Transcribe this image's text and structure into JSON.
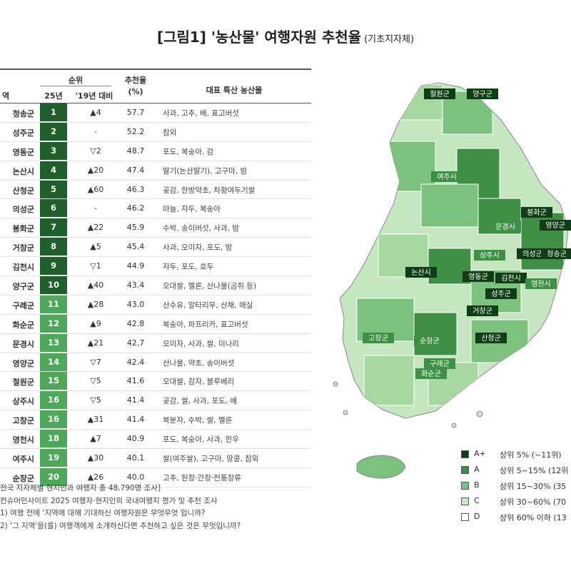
{
  "title": {
    "main": "[그림1] '농산물' 여행자원 추천율",
    "sub": "(기초지자체)"
  },
  "table": {
    "headers": {
      "region": "역",
      "rank": "순위",
      "rank_25": "25년",
      "rank_19": "'19년 대비",
      "rate": "추천율",
      "rate_unit": "(%)",
      "products": "대표 특산 농산물"
    },
    "colors": {
      "top": "#1f5f2b",
      "second": "#4da85a"
    },
    "rows": [
      {
        "region": "청송군",
        "rank": "1",
        "change": "▲4",
        "rate": "57.7",
        "products": "사과, 고추, 배, 표고버섯",
        "tier": "top"
      },
      {
        "region": "성주군",
        "rank": "2",
        "change": "-",
        "rate": "52.2",
        "products": "참외",
        "tier": "top"
      },
      {
        "region": "영동군",
        "rank": "3",
        "change": "▽2",
        "rate": "48.7",
        "products": "포도, 복숭아, 감",
        "tier": "top"
      },
      {
        "region": "논산시",
        "rank": "4",
        "change": "▲20",
        "rate": "47.4",
        "products": "딸기(논산딸기), 고구마, 밤",
        "tier": "top"
      },
      {
        "region": "산청군",
        "rank": "5",
        "change": "▲60",
        "rate": "46.3",
        "products": "곶감, 한방약초, 차황여두기쌀",
        "tier": "top"
      },
      {
        "region": "의성군",
        "rank": "6",
        "change": "-",
        "rate": "46.2",
        "products": "마늘, 자두, 복숭아",
        "tier": "top"
      },
      {
        "region": "봉화군",
        "rank": "7",
        "change": "▲22",
        "rate": "45.9",
        "products": "수박, 송이버섯, 사과, 밤",
        "tier": "top"
      },
      {
        "region": "거창군",
        "rank": "8",
        "change": "▲5",
        "rate": "45.4",
        "products": "사과, 오미자, 포도, 밤",
        "tier": "top"
      },
      {
        "region": "김천시",
        "rank": "9",
        "change": "▽1",
        "rate": "44.9",
        "products": "자두, 포도, 호두",
        "tier": "top"
      },
      {
        "region": "양구군",
        "rank": "10",
        "change": "▲40",
        "rate": "43.4",
        "products": "오대쌀, 멜론, 산나물(곰취 등)",
        "tier": "top"
      },
      {
        "region": "구례군",
        "rank": "11",
        "change": "▲28",
        "rate": "43.0",
        "products": "산수유, 알타리무, 산채, 매실",
        "tier": "second"
      },
      {
        "region": "화순군",
        "rank": "12",
        "change": "▲9",
        "rate": "42.8",
        "products": "복숭아, 파프리카, 표고버섯",
        "tier": "second"
      },
      {
        "region": "문경시",
        "rank": "13",
        "change": "▲21",
        "rate": "42.7",
        "products": "오미자, 사과, 쌀, 미나리",
        "tier": "second"
      },
      {
        "region": "영양군",
        "rank": "14",
        "change": "▽7",
        "rate": "42.4",
        "products": "산나물, 약초, 송이버섯",
        "tier": "second"
      },
      {
        "region": "철원군",
        "rank": "15",
        "change": "▽5",
        "rate": "41.6",
        "products": "오대쌀, 감자, 블루베리",
        "tier": "second"
      },
      {
        "region": "상주시",
        "rank": "16",
        "change": "▽5",
        "rate": "41.4",
        "products": "곶감, 쌀, 사과, 포도, 배",
        "tier": "second"
      },
      {
        "region": "고창군",
        "rank": "16",
        "change": "▲31",
        "rate": "41.4",
        "products": "복분자, 수박, 쌀, 멜론",
        "tier": "second"
      },
      {
        "region": "영천시",
        "rank": "18",
        "change": "▲7",
        "rate": "40.9",
        "products": "포도, 복숭아, 사과, 한우",
        "tier": "second"
      },
      {
        "region": "여주시",
        "rank": "19",
        "change": "▲30",
        "rate": "40.1",
        "products": "쌀(여주쌀), 고구마, 땅콩, 참외",
        "tier": "second"
      },
      {
        "region": "순창군",
        "rank": "20",
        "change": "▲26",
        "rate": "40.0",
        "products": "고추, 된장·간장·전통장류",
        "tier": "second"
      }
    ]
  },
  "notes": [
    "전국 지자체별 현지인과 여행자 총 48,790명 조사]",
    "컨슈머인사이트 2025 여행자·현지인의 국내여행지 평가 및 추천 조사",
    "1) 여행 전에 '지역에 대해 기대하신 여행자원은 무엇무엇 입니까?",
    "2) '그 지역'을(를) 여행객에게 소개하신다면 추천하고 싶은 것은 무엇입니까?"
  ],
  "map": {
    "colors": {
      "aplus": "#0f3d16",
      "a": "#3f8f46",
      "b": "#7dc17f",
      "c": "#c6e6c1",
      "d": "#ffffff",
      "border": "#ffffff"
    },
    "labels": [
      {
        "text": "철원군",
        "grade": "aplus"
      },
      {
        "text": "양구군",
        "grade": "aplus"
      },
      {
        "text": "여주시",
        "grade": "a"
      },
      {
        "text": "봉화군",
        "grade": "aplus"
      },
      {
        "text": "영양군",
        "grade": "aplus"
      },
      {
        "text": "문경시",
        "grade": "a"
      },
      {
        "text": "상주시",
        "grade": "a"
      },
      {
        "text": "의성군",
        "grade": "aplus"
      },
      {
        "text": "청송군",
        "grade": "aplus"
      },
      {
        "text": "논산시",
        "grade": "aplus"
      },
      {
        "text": "영동군",
        "grade": "aplus"
      },
      {
        "text": "김천시",
        "grade": "aplus"
      },
      {
        "text": "영천시",
        "grade": "a"
      },
      {
        "text": "성주군",
        "grade": "aplus"
      },
      {
        "text": "거창군",
        "grade": "aplus"
      },
      {
        "text": "고창군",
        "grade": "a"
      },
      {
        "text": "순창군",
        "grade": "a"
      },
      {
        "text": "산청군",
        "grade": "aplus"
      },
      {
        "text": "구례군",
        "grade": "a"
      },
      {
        "text": "화순군",
        "grade": "a"
      }
    ]
  },
  "legend": [
    {
      "grade": "A+",
      "desc": "상위 5% (~11위)",
      "color": "#0f3d16"
    },
    {
      "grade": "A",
      "desc": "상위 5~15% (12위",
      "color": "#3f8f46"
    },
    {
      "grade": "B",
      "desc": "상위 15~30% (35",
      "color": "#7dc17f"
    },
    {
      "grade": "C",
      "desc": "상위 30~60% (70",
      "color": "#c6e6c1"
    },
    {
      "grade": "D",
      "desc": "상위 60% 이하 (13",
      "color": "#ffffff"
    }
  ],
  "chart_data": {
    "type": "table",
    "title": "[그림1] '농산물' 여행자원 추천율",
    "subtitle": "(기초지자체)",
    "columns": [
      "25년",
      "'19년 대비",
      "추천율 (%)",
      "대표 특산 농산물"
    ],
    "rows": [
      [
        "청송군",
        1,
        "▲4",
        57.7
      ],
      [
        "성주군",
        2,
        "-",
        52.2
      ],
      [
        "영동군",
        3,
        "▽2",
        48.7
      ],
      [
        "논산시",
        4,
        "▲20",
        47.4
      ],
      [
        "산청군",
        5,
        "▲60",
        46.3
      ],
      [
        "의성군",
        6,
        "-",
        46.2
      ],
      [
        "봉화군",
        7,
        "▲22",
        45.9
      ],
      [
        "거창군",
        8,
        "▲5",
        45.4
      ],
      [
        "김천시",
        9,
        "▽1",
        44.9
      ],
      [
        "양구군",
        10,
        "▲40",
        43.4
      ],
      [
        "구례군",
        11,
        "▲28",
        43.0
      ],
      [
        "화순군",
        12,
        "▲9",
        42.8
      ],
      [
        "문경시",
        13,
        "▲21",
        42.7
      ],
      [
        "영양군",
        14,
        "▽7",
        42.4
      ],
      [
        "철원군",
        15,
        "▽5",
        41.6
      ],
      [
        "상주시",
        16,
        "▽5",
        41.4
      ],
      [
        "고창군",
        16,
        "▲31",
        41.4
      ],
      [
        "영천시",
        18,
        "▲7",
        40.9
      ],
      [
        "여주시",
        19,
        "▲30",
        40.1
      ],
      [
        "순창군",
        20,
        "▲26",
        40.0
      ]
    ]
  }
}
